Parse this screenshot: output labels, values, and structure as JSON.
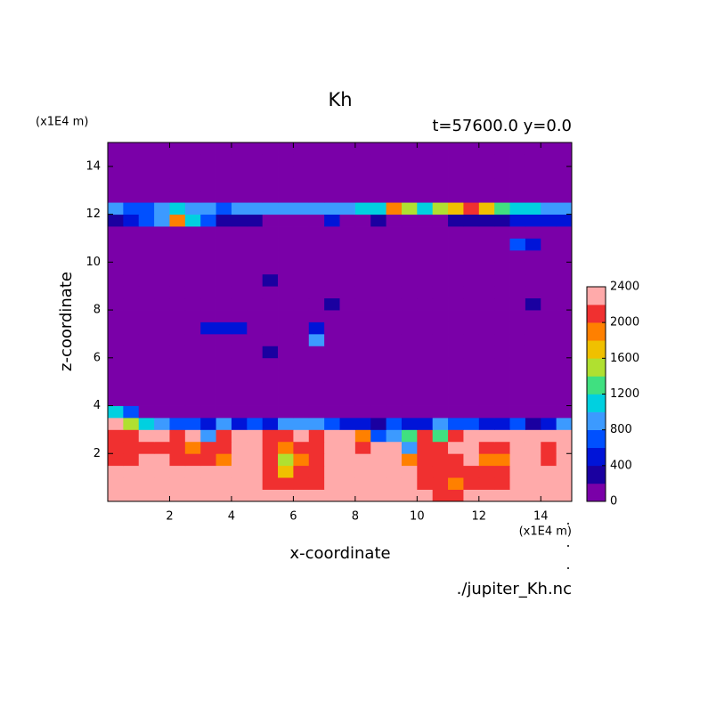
{
  "chart_data": {
    "type": "contour",
    "title": "Kh",
    "subtitle": "t=57600.0 y=0.0",
    "x_unit": "(x1E4 m)",
    "y_unit": "(x1E4 m)",
    "xlabel": "x-coordinate",
    "ylabel": "z-coordinate",
    "footer": "./jupiter_Kh.nc",
    "xlim": [
      0,
      15
    ],
    "ylim": [
      0,
      15
    ],
    "xticks": [
      2,
      4,
      6,
      8,
      10,
      12,
      14
    ],
    "yticks": [
      2,
      4,
      6,
      8,
      10,
      12,
      14
    ],
    "x_edges": [
      0,
      0.5,
      1,
      1.5,
      2,
      2.5,
      3,
      3.5,
      4,
      4.5,
      5,
      5.5,
      6,
      6.5,
      7,
      7.5,
      8,
      8.5,
      9,
      9.5,
      10,
      10.5,
      11,
      11.5,
      12,
      12.5,
      13,
      13.5,
      14,
      14.5,
      15
    ],
    "y_edges": [
      0,
      0.5,
      1,
      1.5,
      2,
      2.5,
      3,
      3.5,
      4,
      4.5,
      5,
      5.5,
      6,
      6.5,
      7,
      7.5,
      8,
      8.5,
      9,
      9.5,
      10,
      10.5,
      11,
      11.5,
      12,
      12.5,
      13,
      13.5,
      14,
      14.5,
      15
    ],
    "levels": [
      0,
      200,
      400,
      600,
      800,
      1000,
      1200,
      1400,
      1600,
      1800,
      2000,
      2200,
      2400
    ],
    "colors": [
      "#7a00a8",
      "#1a00a0",
      "#0014d8",
      "#0050ff",
      "#3c9aff",
      "#00d0e0",
      "#40e080",
      "#b0e030",
      "#f0c000",
      "#ff8000",
      "#f03030",
      "#ffaaaa"
    ],
    "colorbar_ticks": [
      0,
      400,
      800,
      1200,
      1600,
      2000,
      2400
    ],
    "z": [
      [
        2300,
        2300,
        2300,
        2300,
        2300,
        2300,
        2300,
        2300,
        2300,
        2300,
        2300,
        2300,
        2300,
        2300,
        2300,
        2300,
        2300,
        2300,
        2300,
        2300,
        2300,
        2100,
        2100,
        2300,
        2300,
        2300,
        2300,
        2300,
        2300,
        2300
      ],
      [
        2300,
        2300,
        2300,
        2300,
        2300,
        2300,
        2300,
        2300,
        2300,
        2300,
        2100,
        2100,
        2100,
        2100,
        2300,
        2300,
        2300,
        2300,
        2300,
        2300,
        2100,
        2100,
        1900,
        2100,
        2100,
        2100,
        2300,
        2300,
        2300,
        2300
      ],
      [
        2300,
        2300,
        2300,
        2300,
        2300,
        2300,
        2300,
        2300,
        2300,
        2300,
        2100,
        1700,
        2000,
        2100,
        2300,
        2300,
        2300,
        2300,
        2300,
        2300,
        2100,
        2100,
        2100,
        2100,
        2100,
        2100,
        2300,
        2300,
        2300,
        2300
      ],
      [
        2100,
        2100,
        2300,
        2300,
        2100,
        2000,
        2100,
        1900,
        2300,
        2300,
        2100,
        1500,
        1900,
        2100,
        2300,
        2300,
        2300,
        2300,
        2300,
        1800,
        2100,
        2100,
        2100,
        2300,
        1900,
        1900,
        2300,
        2300,
        2100,
        2300
      ],
      [
        2100,
        2100,
        2100,
        2100,
        2100,
        1900,
        2000,
        2100,
        2300,
        2300,
        2100,
        1800,
        2000,
        2100,
        2300,
        2300,
        2100,
        2300,
        2300,
        900,
        2100,
        2100,
        2300,
        2300,
        2100,
        2100,
        2300,
        2300,
        2100,
        2300
      ],
      [
        2100,
        2100,
        2300,
        2300,
        2100,
        2200,
        900,
        2100,
        2300,
        2300,
        2100,
        2100,
        2200,
        2100,
        2300,
        2300,
        1800,
        600,
        900,
        1200,
        2100,
        1200,
        2100,
        2300,
        2300,
        2300,
        2300,
        2300,
        2300,
        2300
      ],
      [
        2200,
        1400,
        1000,
        900,
        600,
        700,
        500,
        800,
        400,
        700,
        500,
        800,
        900,
        800,
        700,
        400,
        500,
        300,
        700,
        500,
        400,
        800,
        600,
        700,
        500,
        400,
        600,
        300,
        500,
        800
      ],
      [
        1000,
        600,
        0,
        0,
        0,
        0,
        0,
        0,
        0,
        0,
        0,
        0,
        0,
        0,
        0,
        0,
        0,
        0,
        0,
        0,
        0,
        0,
        0,
        0,
        0,
        0,
        0,
        0,
        0,
        0
      ],
      [
        0,
        0,
        0,
        0,
        0,
        0,
        0,
        0,
        0,
        0,
        0,
        0,
        0,
        0,
        0,
        0,
        0,
        0,
        0,
        0,
        0,
        0,
        0,
        0,
        0,
        0,
        0,
        0,
        0,
        0
      ],
      [
        0,
        0,
        0,
        0,
        0,
        0,
        0,
        0,
        0,
        0,
        0,
        0,
        0,
        0,
        0,
        0,
        0,
        0,
        0,
        0,
        0,
        0,
        0,
        0,
        0,
        0,
        0,
        0,
        0,
        0
      ],
      [
        0,
        0,
        0,
        0,
        0,
        0,
        0,
        0,
        0,
        0,
        0,
        0,
        0,
        0,
        0,
        0,
        0,
        0,
        0,
        0,
        0,
        0,
        0,
        0,
        0,
        0,
        0,
        0,
        0,
        0
      ],
      [
        0,
        0,
        0,
        0,
        0,
        0,
        0,
        0,
        0,
        0,
        0,
        0,
        0,
        0,
        0,
        0,
        0,
        0,
        0,
        0,
        0,
        0,
        0,
        0,
        0,
        0,
        0,
        0,
        0,
        0
      ],
      [
        0,
        0,
        0,
        0,
        0,
        0,
        0,
        0,
        0,
        0,
        250,
        0,
        0,
        0,
        0,
        0,
        0,
        0,
        0,
        0,
        0,
        0,
        0,
        0,
        0,
        0,
        0,
        0,
        0,
        0
      ],
      [
        0,
        0,
        0,
        0,
        0,
        0,
        0,
        0,
        0,
        0,
        0,
        0,
        0,
        800,
        0,
        0,
        0,
        0,
        0,
        0,
        0,
        0,
        0,
        0,
        0,
        0,
        0,
        0,
        0,
        0
      ],
      [
        0,
        0,
        0,
        0,
        0,
        0,
        500,
        500,
        500,
        0,
        0,
        0,
        0,
        500,
        0,
        0,
        0,
        0,
        0,
        0,
        0,
        0,
        0,
        0,
        0,
        0,
        0,
        0,
        0,
        0
      ],
      [
        0,
        0,
        0,
        0,
        0,
        0,
        0,
        0,
        0,
        0,
        0,
        0,
        0,
        0,
        0,
        0,
        0,
        0,
        0,
        0,
        0,
        0,
        0,
        0,
        0,
        0,
        0,
        0,
        0,
        0
      ],
      [
        0,
        0,
        0,
        0,
        0,
        0,
        0,
        0,
        0,
        0,
        0,
        0,
        0,
        0,
        300,
        0,
        0,
        0,
        0,
        0,
        0,
        0,
        0,
        0,
        0,
        0,
        0,
        300,
        0,
        0
      ],
      [
        0,
        0,
        0,
        0,
        0,
        0,
        0,
        0,
        0,
        0,
        0,
        0,
        0,
        0,
        0,
        0,
        0,
        0,
        0,
        0,
        0,
        0,
        0,
        0,
        0,
        0,
        0,
        0,
        0,
        0
      ],
      [
        0,
        0,
        0,
        0,
        0,
        0,
        0,
        0,
        0,
        0,
        250,
        0,
        0,
        0,
        0,
        0,
        0,
        0,
        0,
        0,
        0,
        0,
        0,
        0,
        0,
        0,
        0,
        0,
        0,
        0
      ],
      [
        0,
        0,
        0,
        0,
        0,
        0,
        0,
        0,
        0,
        0,
        0,
        0,
        0,
        0,
        0,
        0,
        0,
        0,
        0,
        0,
        0,
        0,
        0,
        0,
        0,
        0,
        0,
        0,
        0,
        0
      ],
      [
        0,
        0,
        0,
        0,
        0,
        0,
        0,
        0,
        0,
        0,
        0,
        0,
        0,
        0,
        0,
        0,
        0,
        0,
        0,
        0,
        0,
        0,
        0,
        0,
        0,
        0,
        0,
        0,
        0,
        0
      ],
      [
        0,
        0,
        0,
        0,
        0,
        0,
        0,
        0,
        0,
        0,
        0,
        0,
        0,
        0,
        0,
        0,
        0,
        0,
        0,
        0,
        0,
        0,
        0,
        0,
        0,
        0,
        700,
        500,
        0,
        0
      ],
      [
        0,
        0,
        0,
        0,
        0,
        0,
        0,
        0,
        0,
        0,
        0,
        0,
        0,
        0,
        0,
        0,
        0,
        0,
        0,
        0,
        0,
        0,
        0,
        0,
        0,
        0,
        0,
        0,
        0,
        0
      ],
      [
        300,
        400,
        600,
        900,
        1800,
        1000,
        600,
        300,
        300,
        200,
        0,
        0,
        0,
        0,
        500,
        0,
        0,
        200,
        0,
        0,
        0,
        0,
        300,
        300,
        300,
        300,
        400,
        500,
        500,
        500
      ],
      [
        800,
        600,
        700,
        900,
        1000,
        900,
        800,
        700,
        800,
        900,
        900,
        800,
        900,
        900,
        800,
        900,
        1000,
        1100,
        1800,
        1400,
        1100,
        1500,
        1700,
        2000,
        1600,
        1300,
        1100,
        1000,
        900,
        800
      ],
      [
        0,
        0,
        0,
        0,
        0,
        0,
        0,
        0,
        0,
        0,
        0,
        0,
        0,
        0,
        0,
        0,
        0,
        0,
        0,
        0,
        0,
        0,
        0,
        0,
        0,
        0,
        0,
        0,
        0,
        0
      ],
      [
        0,
        0,
        0,
        0,
        0,
        0,
        0,
        0,
        0,
        0,
        0,
        0,
        0,
        0,
        0,
        0,
        0,
        0,
        0,
        0,
        0,
        0,
        0,
        0,
        0,
        0,
        0,
        0,
        0,
        0
      ],
      [
        0,
        0,
        0,
        0,
        0,
        0,
        0,
        0,
        0,
        0,
        0,
        0,
        0,
        0,
        0,
        0,
        0,
        0,
        0,
        0,
        0,
        0,
        0,
        0,
        0,
        0,
        0,
        0,
        0,
        0
      ],
      [
        0,
        0,
        0,
        0,
        0,
        0,
        0,
        0,
        0,
        0,
        0,
        0,
        0,
        0,
        0,
        0,
        0,
        0,
        0,
        0,
        0,
        0,
        0,
        0,
        0,
        0,
        0,
        0,
        0,
        0
      ],
      [
        0,
        0,
        0,
        0,
        0,
        0,
        0,
        0,
        0,
        0,
        0,
        0,
        0,
        0,
        0,
        0,
        0,
        0,
        0,
        0,
        0,
        0,
        0,
        0,
        0,
        0,
        0,
        0,
        0,
        0
      ]
    ]
  }
}
